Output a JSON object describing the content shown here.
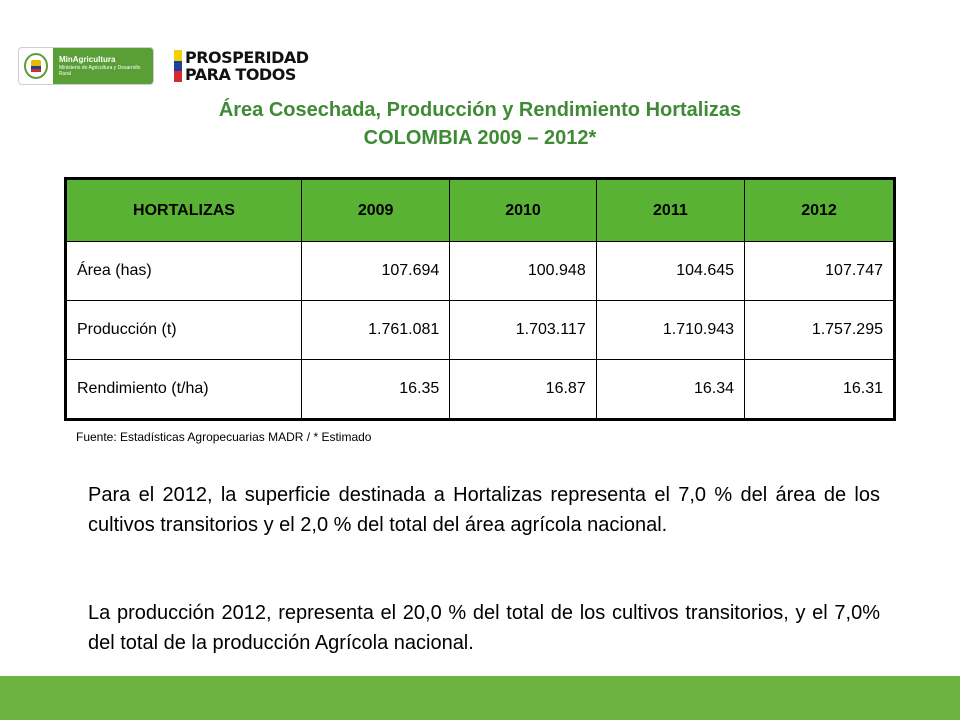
{
  "logos": {
    "ministry_name": "MinAgricultura",
    "ministry_sub": "Ministerio de Agricultura y Desarrollo Rural",
    "slogan_line1": "PROSPERIDAD",
    "slogan_line2": "PARA TODOS",
    "flag_colors": [
      "#f4d000",
      "#1d3f9e",
      "#d62b2b"
    ]
  },
  "title": {
    "line1": "Área Cosechada, Producción y Rendimiento Hortalizas",
    "line2": "COLOMBIA 2009 – 2012*"
  },
  "table": {
    "headers": [
      "HORTALIZAS",
      "2009",
      "2010",
      "2011",
      "2012"
    ],
    "rows": [
      [
        "Área (has)",
        "107.694",
        "100.948",
        "104.645",
        "107.747"
      ],
      [
        "Producción (t)",
        "1.761.081",
        "1.703.117",
        "1.710.943",
        "1.757.295"
      ],
      [
        "Rendimiento (t/ha)",
        "16.35",
        "16.87",
        "16.34",
        "16.31"
      ]
    ]
  },
  "source": "Fuente: Estadísticas Agropecuarias MADR / * Estimado",
  "paragraphs": [
    "Para el 2012, la superficie destinada a Hortalizas representa el 7,0 % del área de los cultivos transitorios y el 2,0 % del total del área agrícola nacional.",
    "La producción 2012, representa el 20,0 % del total de los cultivos transitorios, y el 7,0% del total de la producción Agrícola nacional."
  ],
  "colors": {
    "title": "#3f8a34",
    "header_fill": "#59b233",
    "footer_bar": "#6db33f"
  }
}
